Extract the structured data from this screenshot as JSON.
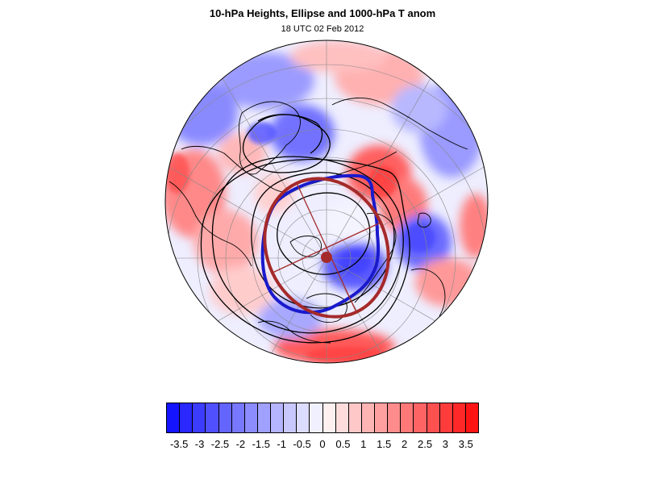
{
  "header": {
    "title": "10-hPa Heights, Ellipse and 1000-hPa T anom",
    "subtitle": "18 UTC 02 Feb 2012"
  },
  "map": {
    "projection": "polar stereographic (north pole)",
    "grid": true,
    "ellipse_color": "#a52a2a",
    "vortex_edge_color": "#1a1acc",
    "contour_color": "#000000"
  },
  "colorbar": {
    "colors": [
      "#1414ff",
      "#2828ff",
      "#3c3cff",
      "#5050ff",
      "#6464ff",
      "#7878ff",
      "#8c8cff",
      "#a0a0ff",
      "#b4b4ff",
      "#c8c8ff",
      "#dcdcff",
      "#f0f0ff",
      "#fff0f0",
      "#ffdcdc",
      "#ffc8c8",
      "#ffb4b4",
      "#ffa0a0",
      "#ff8c8c",
      "#ff7878",
      "#ff6464",
      "#ff5050",
      "#ff3c3c",
      "#ff2828",
      "#ff1414"
    ],
    "tick_labels": [
      "-3.5",
      "-3",
      "-2.5",
      "-2",
      "-1.5",
      "-1",
      "-0.5",
      "0",
      "0.5",
      "1",
      "1.5",
      "2",
      "2.5",
      "3",
      "3.5"
    ]
  }
}
